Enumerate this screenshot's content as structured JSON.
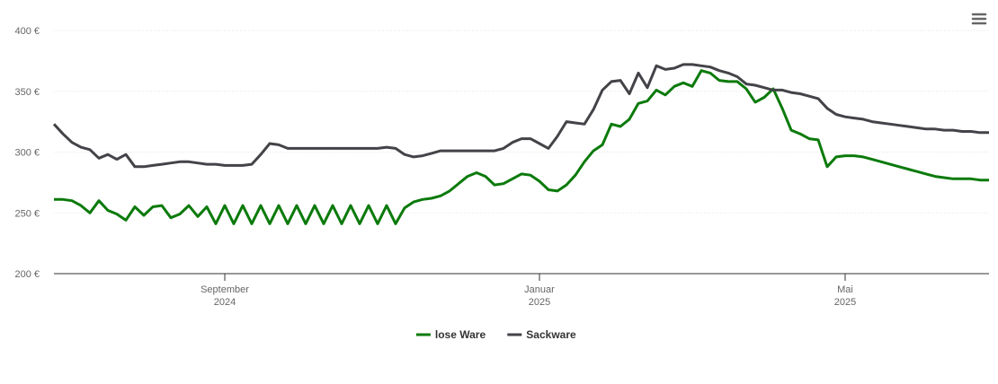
{
  "chart_data": {
    "type": "line",
    "categories": [
      null,
      null,
      null,
      null,
      null,
      null,
      null,
      null,
      null,
      null,
      null,
      null,
      null,
      null,
      null,
      null,
      null,
      null,
      null,
      "September 2024",
      null,
      null,
      null,
      null,
      null,
      null,
      null,
      null,
      null,
      null,
      null,
      null,
      null,
      null,
      null,
      null,
      null,
      null,
      null,
      null,
      null,
      null,
      null,
      null,
      null,
      null,
      null,
      null,
      null,
      null,
      null,
      null,
      null,
      null,
      "Januar 2025",
      null,
      null,
      null,
      null,
      null,
      null,
      null,
      null,
      null,
      null,
      null,
      null,
      null,
      null,
      null,
      null,
      null,
      null,
      null,
      null,
      null,
      null,
      null,
      null,
      null,
      null,
      null,
      null,
      null,
      null,
      null,
      null,
      null,
      "Mai 2025",
      null,
      null,
      null,
      null,
      null,
      null,
      null,
      null,
      null,
      null,
      null,
      null,
      null,
      null,
      null,
      null
    ],
    "series": [
      {
        "name": "lose Ware",
        "color": "#0b7a0b",
        "values": [
          261,
          261,
          260,
          256,
          250,
          260,
          252,
          249,
          244,
          255,
          248,
          255,
          256,
          246,
          249,
          256,
          247,
          255,
          241,
          256,
          241,
          256,
          241,
          256,
          241,
          256,
          241,
          256,
          241,
          256,
          241,
          256,
          241,
          256,
          241,
          256,
          241,
          256,
          241,
          254,
          259,
          261,
          262,
          264,
          268,
          274,
          280,
          283,
          280,
          273,
          274,
          278,
          282,
          281,
          276,
          269,
          268,
          273,
          281,
          292,
          301,
          306,
          323,
          321,
          327,
          340,
          342,
          351,
          347,
          354,
          357,
          354,
          367,
          365,
          359,
          358,
          358,
          352,
          341,
          345,
          352,
          336,
          318,
          315,
          311,
          310,
          288,
          296,
          297,
          297,
          296,
          294,
          292,
          290,
          288,
          286,
          284,
          282,
          280,
          279,
          278,
          278,
          278,
          277,
          277
        ]
      },
      {
        "name": "Sackware",
        "color": "#434348",
        "values": [
          323,
          315,
          308,
          304,
          302,
          295,
          298,
          294,
          298,
          288,
          288,
          289,
          290,
          291,
          292,
          292,
          291,
          290,
          290,
          289,
          289,
          289,
          290,
          298,
          307,
          306,
          303,
          303,
          303,
          303,
          303,
          303,
          303,
          303,
          303,
          303,
          303,
          304,
          303,
          298,
          296,
          297,
          299,
          301,
          301,
          301,
          301,
          301,
          301,
          301,
          303,
          308,
          311,
          311,
          307,
          303,
          313,
          325,
          324,
          323,
          335,
          351,
          358,
          359,
          348,
          365,
          353,
          371,
          368,
          369,
          372,
          372,
          371,
          370,
          367,
          365,
          362,
          356,
          355,
          353,
          351,
          351,
          349,
          348,
          346,
          344,
          336,
          331,
          329,
          328,
          327,
          325,
          324,
          323,
          322,
          321,
          320,
          319,
          319,
          318,
          318,
          317,
          317,
          316,
          316
        ]
      }
    ],
    "ylim": [
      200,
      400
    ],
    "yticks": [
      {
        "value": 200,
        "label": "200 €"
      },
      {
        "value": 250,
        "label": "250 €"
      },
      {
        "value": 300,
        "label": "300 €"
      },
      {
        "value": 350,
        "label": "350 €"
      },
      {
        "value": 400,
        "label": "400 €"
      }
    ],
    "grid": true,
    "legend": "bottom"
  }
}
